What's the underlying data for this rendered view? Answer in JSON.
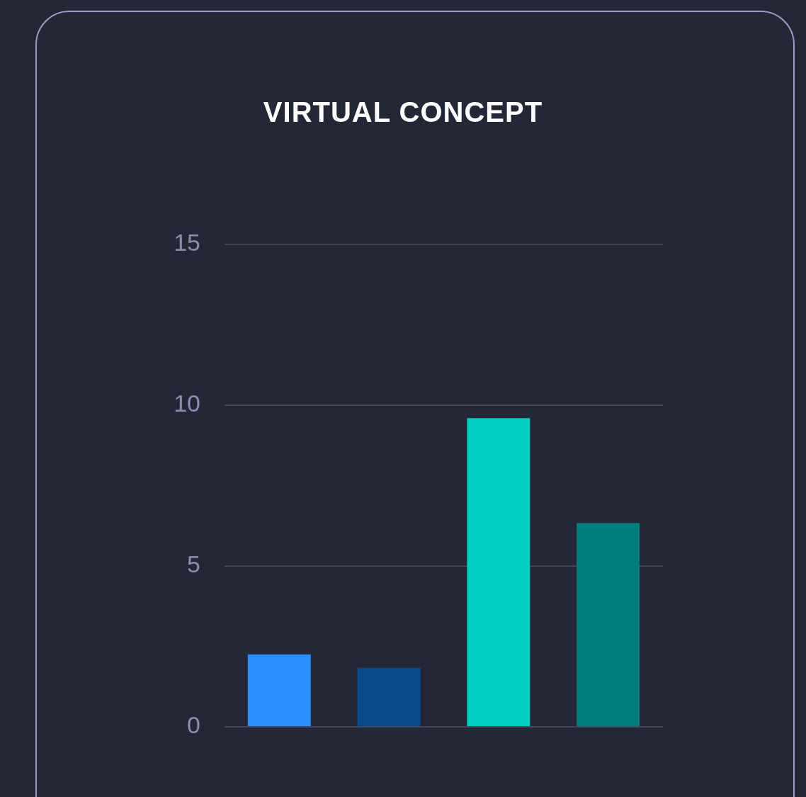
{
  "chart_data": {
    "type": "bar",
    "title": "VIRTUAL CONCEPT",
    "categories": [
      null,
      null,
      null,
      null
    ],
    "values": [
      2.25,
      1.84,
      9.6,
      6.34
    ],
    "colors": [
      "#2b90ff",
      "#0b4a8a",
      "#00cdc1",
      "#007e80"
    ],
    "ylim": [
      0,
      15
    ],
    "yticks": [
      0,
      5,
      10,
      15
    ],
    "grid": "y",
    "legend": false
  }
}
